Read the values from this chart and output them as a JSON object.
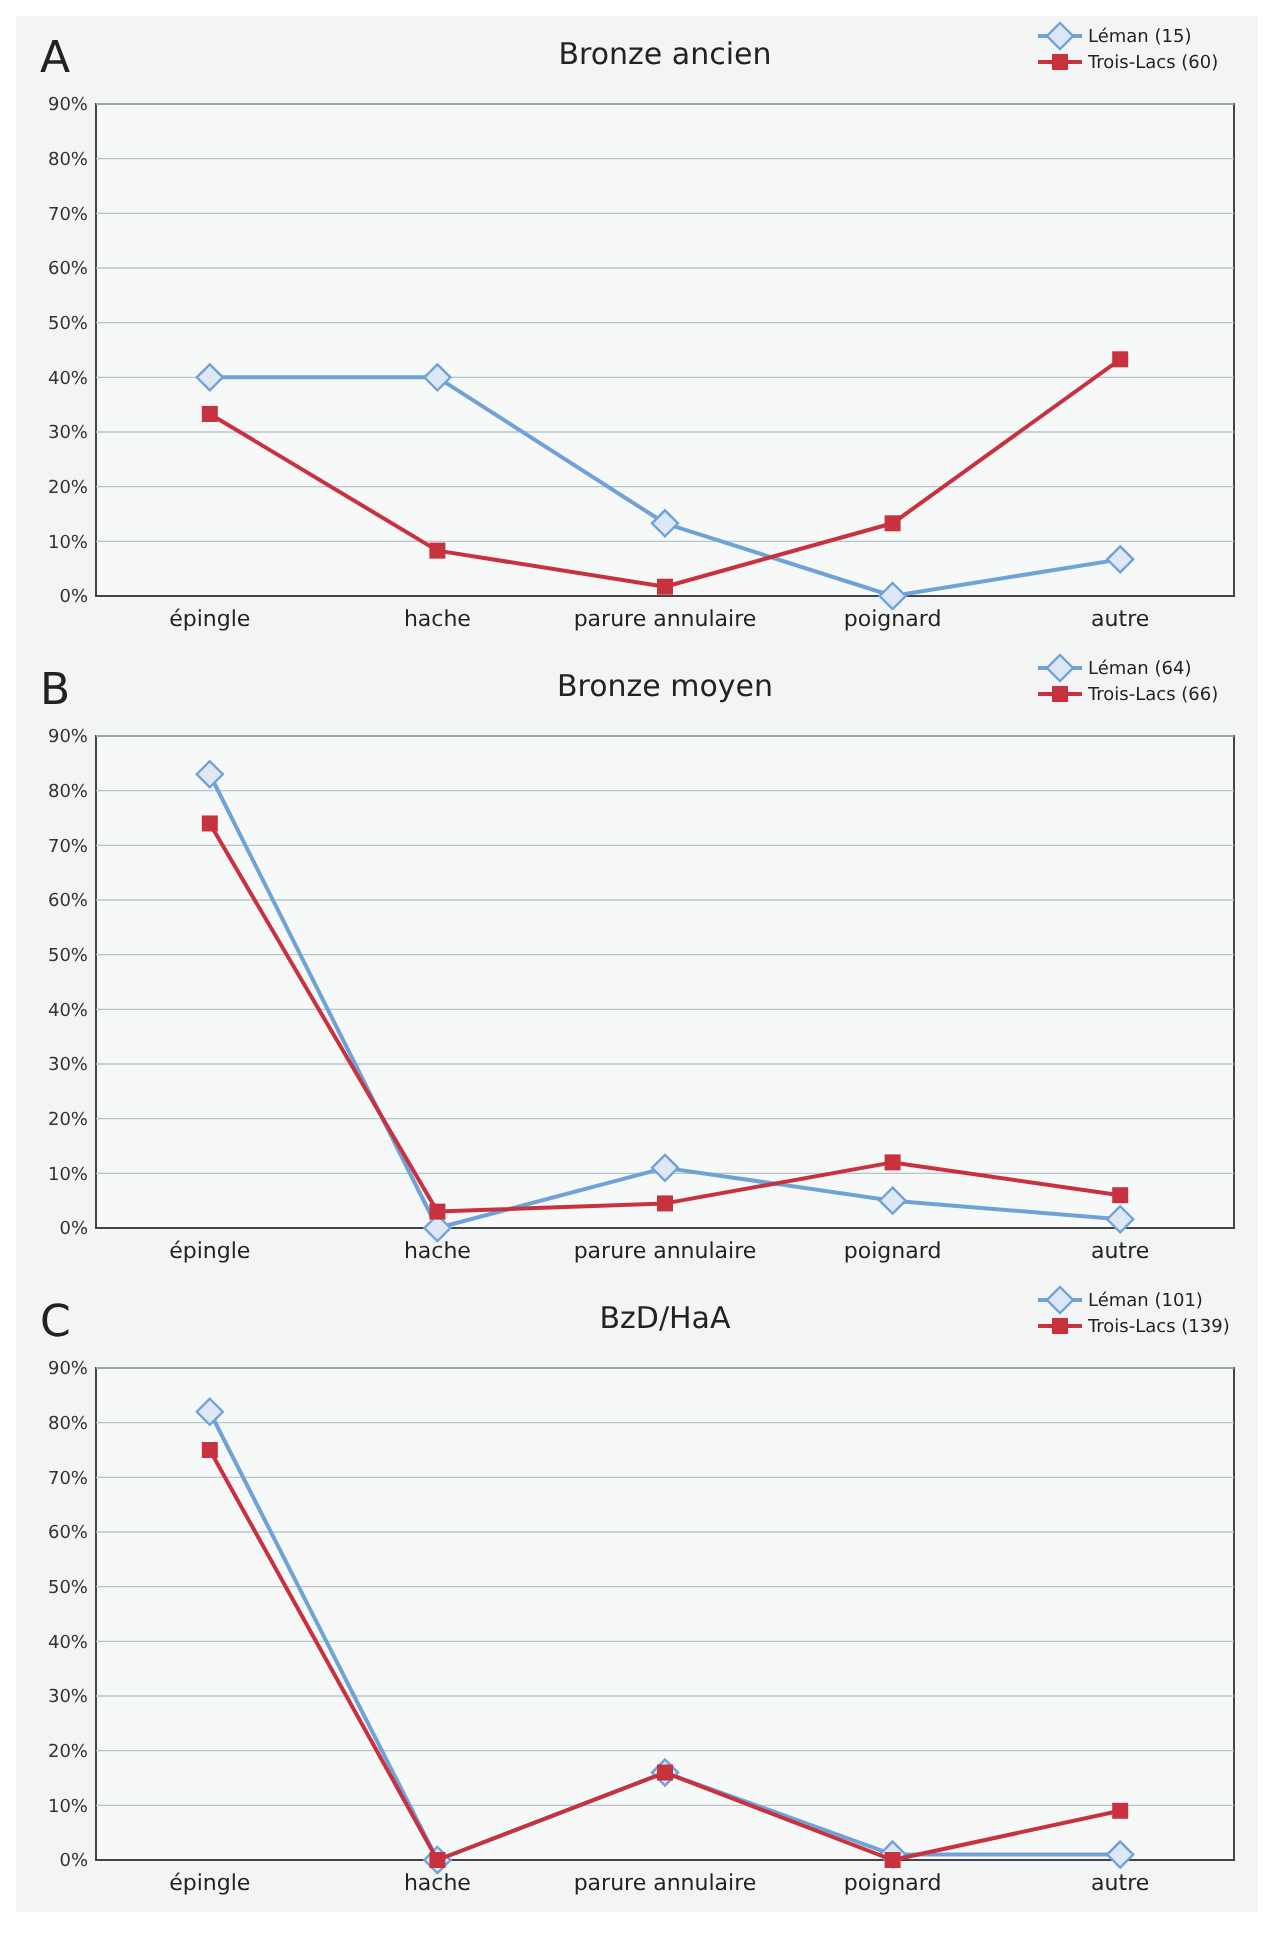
{
  "chart_data": [
    {
      "type": "line",
      "title": "Bronze ancien",
      "annotations": [
        "A"
      ],
      "categories": [
        "épingle",
        "hache",
        "parure annulaire",
        "poignard",
        "autre"
      ],
      "ylim": [
        0,
        90
      ],
      "yticks": [
        {
          "value": 0,
          "label": "0%"
        },
        {
          "value": 10,
          "label": "10%"
        },
        {
          "value": 20,
          "label": "20%"
        },
        {
          "value": 30,
          "label": "30%"
        },
        {
          "value": 40,
          "label": "40%"
        },
        {
          "value": 50,
          "label": "50%"
        },
        {
          "value": 60,
          "label": "60%"
        },
        {
          "value": 70,
          "label": "70%"
        },
        {
          "value": 80,
          "label": "80%"
        },
        {
          "value": 90,
          "label": "90%"
        }
      ],
      "grid": "y",
      "legend": "top right",
      "series": [
        {
          "name": "Léman (15)",
          "color": "#6fa3d8",
          "marker": "diamond",
          "values": [
            40,
            40,
            13.3,
            0,
            6.7
          ]
        },
        {
          "name": "Trois-Lacs (60)",
          "color": "#c8323f",
          "marker": "square",
          "values": [
            33.3,
            8.3,
            1.7,
            13.3,
            43.3
          ]
        }
      ]
    },
    {
      "type": "line",
      "title": "Bronze moyen",
      "annotations": [
        "B"
      ],
      "categories": [
        "épingle",
        "hache",
        "parure annulaire",
        "poignard",
        "autre"
      ],
      "ylim": [
        0,
        90
      ],
      "yticks": [
        {
          "value": 0,
          "label": "0%"
        },
        {
          "value": 10,
          "label": "10%"
        },
        {
          "value": 20,
          "label": "20%"
        },
        {
          "value": 30,
          "label": "30%"
        },
        {
          "value": 40,
          "label": "40%"
        },
        {
          "value": 50,
          "label": "50%"
        },
        {
          "value": 60,
          "label": "60%"
        },
        {
          "value": 70,
          "label": "70%"
        },
        {
          "value": 80,
          "label": "80%"
        },
        {
          "value": 90,
          "label": "90%"
        }
      ],
      "grid": "y",
      "legend": "top right",
      "series": [
        {
          "name": "Léman (64)",
          "color": "#6fa3d8",
          "marker": "diamond",
          "values": [
            83,
            0,
            11,
            5,
            1.6
          ]
        },
        {
          "name": "Trois-Lacs (66)",
          "color": "#c8323f",
          "marker": "square",
          "values": [
            74,
            3,
            4.5,
            12,
            6
          ]
        }
      ]
    },
    {
      "type": "line",
      "title": "BzD/HaA",
      "annotations": [
        "C"
      ],
      "categories": [
        "épingle",
        "hache",
        "parure annulaire",
        "poignard",
        "autre"
      ],
      "ylim": [
        0,
        90
      ],
      "yticks": [
        {
          "value": 0,
          "label": "0%"
        },
        {
          "value": 10,
          "label": "10%"
        },
        {
          "value": 20,
          "label": "20%"
        },
        {
          "value": 30,
          "label": "30%"
        },
        {
          "value": 40,
          "label": "40%"
        },
        {
          "value": 50,
          "label": "50%"
        },
        {
          "value": 60,
          "label": "60%"
        },
        {
          "value": 70,
          "label": "70%"
        },
        {
          "value": 80,
          "label": "80%"
        },
        {
          "value": 90,
          "label": "90%"
        }
      ],
      "grid": "y",
      "legend": "top right",
      "series": [
        {
          "name": "Léman (101)",
          "color": "#6fa3d8",
          "marker": "diamond",
          "values": [
            82,
            0,
            16,
            1,
            1
          ]
        },
        {
          "name": "Trois-Lacs (139)",
          "color": "#c8323f",
          "marker": "square",
          "values": [
            75,
            0,
            16,
            0,
            9
          ]
        }
      ]
    }
  ]
}
